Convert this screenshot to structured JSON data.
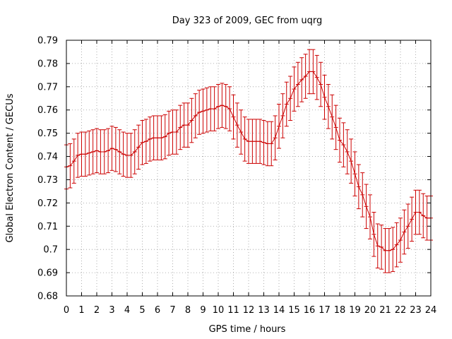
{
  "chart_data": {
    "type": "line",
    "title": "Day 323 of 2009, GEC from uqrg",
    "xlabel": "GPS time / hours",
    "ylabel": "Global Electron Content / GECUs",
    "xlim": [
      0,
      24
    ],
    "ylim": [
      0.68,
      0.79
    ],
    "xticks": [
      "0",
      "1",
      "2",
      "3",
      "4",
      "5",
      "6",
      "7",
      "8",
      "9",
      "10",
      "11",
      "12",
      "13",
      "14",
      "15",
      "16",
      "17",
      "18",
      "19",
      "20",
      "21",
      "22",
      "23",
      "24"
    ],
    "yticks": [
      "0.68",
      "0.69",
      "0.7",
      "0.71",
      "0.72",
      "0.73",
      "0.74",
      "0.75",
      "0.76",
      "0.77",
      "0.78",
      "0.79"
    ],
    "grid": true,
    "line_color": "#cc0000",
    "grid_color": "#999999",
    "error_bar": 0.0095,
    "series": [
      {
        "x": [
          0,
          0.25,
          0.5,
          0.75,
          1,
          1.25,
          1.5,
          1.75,
          2,
          2.25,
          2.5,
          2.75,
          3,
          3.25,
          3.5,
          3.75,
          4,
          4.25,
          4.5,
          4.75,
          5,
          5.25,
          5.5,
          5.75,
          6,
          6.25,
          6.5,
          6.75,
          7,
          7.25,
          7.5,
          7.75,
          8,
          8.25,
          8.5,
          8.75,
          9,
          9.25,
          9.5,
          9.75,
          10,
          10.25,
          10.5,
          10.75,
          11,
          11.25,
          11.5,
          11.75,
          12,
          12.25,
          12.5,
          12.75,
          13,
          13.25,
          13.5,
          13.75,
          14,
          14.25,
          14.5,
          14.75,
          15,
          15.25,
          15.5,
          15.75,
          16,
          16.25,
          16.5,
          16.75,
          17,
          17.25,
          17.5,
          17.75,
          18,
          18.25,
          18.5,
          18.75,
          19,
          19.25,
          19.5,
          19.75,
          20,
          20.25,
          20.5,
          20.75,
          21,
          21.25,
          21.5,
          21.75,
          22,
          22.25,
          22.5,
          22.75,
          23,
          23.25,
          23.5,
          23.75,
          24
        ],
        "y": [
          0.7355,
          0.736,
          0.738,
          0.7405,
          0.741,
          0.741,
          0.7415,
          0.742,
          0.7425,
          0.742,
          0.742,
          0.7425,
          0.7435,
          0.743,
          0.742,
          0.741,
          0.7405,
          0.7405,
          0.742,
          0.744,
          0.746,
          0.7465,
          0.7475,
          0.748,
          0.748,
          0.748,
          0.7485,
          0.75,
          0.7505,
          0.7505,
          0.7525,
          0.7535,
          0.7535,
          0.7555,
          0.7575,
          0.759,
          0.7595,
          0.76,
          0.7605,
          0.7605,
          0.7615,
          0.762,
          0.7615,
          0.7605,
          0.757,
          0.7535,
          0.7505,
          0.7475,
          0.7465,
          0.7465,
          0.7465,
          0.7465,
          0.746,
          0.7455,
          0.7455,
          0.748,
          0.753,
          0.7575,
          0.7625,
          0.765,
          0.769,
          0.771,
          0.773,
          0.7745,
          0.7765,
          0.7765,
          0.774,
          0.771,
          0.7655,
          0.7615,
          0.757,
          0.7525,
          0.747,
          0.745,
          0.742,
          0.738,
          0.7325,
          0.727,
          0.7235,
          0.7185,
          0.714,
          0.7065,
          0.7015,
          0.701,
          0.6995,
          0.6995,
          0.7,
          0.702,
          0.704,
          0.7075,
          0.71,
          0.713,
          0.716,
          0.716,
          0.7145,
          0.7135,
          0.7135
        ]
      }
    ]
  }
}
